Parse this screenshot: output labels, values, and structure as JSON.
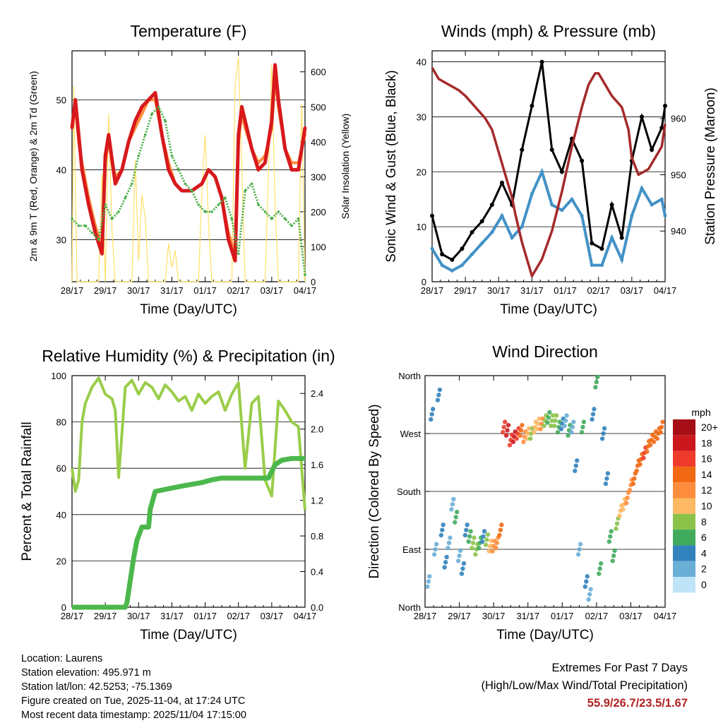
{
  "time_ticks": [
    "28/17",
    "29/17",
    "30/17",
    "31/17",
    "01/17",
    "02/17",
    "03/17",
    "04/17"
  ],
  "chart_data": [
    {
      "type": "line",
      "title": "Temperature (F)",
      "xlabel": "Time (Day/UTC)",
      "ylabel": "2m & 9m T (Red, Orange) & 2m Td (Green)",
      "ylabel_right": "Solar Insolation (Yellow)",
      "ylim": [
        24,
        57
      ],
      "yticks": [
        30,
        40,
        50
      ],
      "ylim_right": [
        0,
        660
      ],
      "yticks_right": [
        0,
        100,
        200,
        300,
        400,
        500,
        600
      ],
      "series": [
        {
          "name": "2m T",
          "color": "#d7191c",
          "axis": "left",
          "x": [
            0,
            0.1,
            0.2,
            0.3,
            0.5,
            0.7,
            0.9,
            1.0,
            1.1,
            1.3,
            1.5,
            1.7,
            1.9,
            2.1,
            2.3,
            2.5,
            2.7,
            2.9,
            3.1,
            3.3,
            3.6,
            3.9,
            4.1,
            4.3,
            4.5,
            4.7,
            4.9,
            5.0,
            5.1,
            5.2,
            5.4,
            5.6,
            5.8,
            6.0,
            6.1,
            6.2,
            6.4,
            6.6,
            6.8,
            7.0
          ],
          "values": [
            46,
            50,
            45,
            40,
            35,
            31,
            28,
            42,
            45,
            38,
            40,
            44,
            47,
            49,
            50,
            51,
            45,
            40,
            38,
            37,
            37,
            38,
            40,
            39,
            36,
            30,
            27,
            45,
            49,
            47,
            43,
            40,
            41,
            47,
            55,
            50,
            43,
            40,
            40,
            46
          ]
        },
        {
          "name": "9m T",
          "color": "#fd8d3c",
          "axis": "left",
          "x": [
            0,
            0.1,
            0.2,
            0.3,
            0.5,
            0.7,
            0.9,
            1.0,
            1.1,
            1.3,
            1.5,
            1.7,
            1.9,
            2.1,
            2.3,
            2.5,
            2.7,
            2.9,
            3.1,
            3.3,
            3.6,
            3.9,
            4.1,
            4.3,
            4.5,
            4.7,
            4.9,
            5.0,
            5.1,
            5.2,
            5.4,
            5.6,
            5.8,
            6.0,
            6.1,
            6.2,
            6.4,
            6.6,
            6.8,
            7.0
          ],
          "values": [
            46,
            49,
            44,
            41,
            36,
            32,
            29,
            41,
            44,
            39,
            40,
            44,
            46,
            48,
            50,
            50,
            45,
            41,
            38,
            37,
            37,
            38,
            40,
            39,
            36,
            31,
            28,
            44,
            48,
            46,
            43,
            41,
            42,
            46,
            53,
            49,
            43,
            41,
            41,
            45
          ]
        },
        {
          "name": "2m Td",
          "color": "#4daf4a",
          "axis": "left",
          "x": [
            0,
            0.2,
            0.4,
            0.6,
            0.8,
            1.0,
            1.2,
            1.4,
            1.6,
            1.8,
            2.0,
            2.2,
            2.4,
            2.6,
            2.8,
            3.0,
            3.2,
            3.4,
            3.6,
            3.8,
            4.0,
            4.2,
            4.4,
            4.6,
            4.8,
            5.0,
            5.2,
            5.4,
            5.6,
            5.8,
            6.0,
            6.2,
            6.4,
            6.6,
            6.8,
            7.0
          ],
          "values": [
            33,
            32,
            32,
            31,
            30,
            35,
            33,
            34,
            36,
            38,
            42,
            45,
            48,
            49,
            47,
            42,
            40,
            38,
            37,
            35,
            34,
            34,
            35,
            36,
            33,
            28,
            37,
            38,
            35,
            34,
            33,
            34,
            33,
            32,
            33,
            25
          ]
        },
        {
          "name": "Solar Insolation",
          "color": "#ffe066",
          "axis": "right",
          "x": [
            0,
            0.05,
            0.15,
            0.2,
            0.3,
            0.8,
            0.9,
            1.0,
            1.1,
            1.2,
            1.3,
            1.8,
            1.9,
            2.0,
            2.1,
            2.2,
            2.3,
            2.8,
            2.9,
            3.0,
            3.1,
            3.2,
            3.8,
            3.9,
            4.0,
            4.1,
            4.2,
            4.8,
            4.9,
            5.0,
            5.1,
            5.2,
            5.8,
            5.9,
            6.0,
            6.1,
            6.2,
            6.8,
            6.9,
            7.0
          ],
          "values": [
            0,
            560,
            0,
            0,
            0,
            0,
            310,
            0,
            480,
            150,
            0,
            0,
            350,
            60,
            250,
            180,
            0,
            0,
            110,
            40,
            90,
            0,
            0,
            260,
            420,
            170,
            0,
            0,
            560,
            640,
            330,
            0,
            0,
            300,
            620,
            220,
            0,
            0,
            510,
            0
          ]
        }
      ]
    },
    {
      "type": "scatter",
      "title": "Winds (mph) & Pressure (mb)",
      "xlabel": "Time (Day/UTC)",
      "ylabel": "Sonic Wind & Gust (Blue, Black)",
      "ylabel_right": "Station Pressure (Maroon)",
      "ylim": [
        0,
        42
      ],
      "yticks": [
        0,
        10,
        20,
        30,
        40
      ],
      "ylim_right": [
        931,
        972
      ],
      "yticks_right": [
        940,
        950,
        960
      ],
      "series": [
        {
          "name": "Sonic Wind",
          "color": "#4292c6",
          "axis": "left",
          "x": [
            0,
            0.3,
            0.6,
            0.9,
            1.2,
            1.5,
            1.8,
            2.1,
            2.4,
            2.7,
            3.0,
            3.3,
            3.6,
            3.9,
            4.2,
            4.5,
            4.8,
            5.1,
            5.4,
            5.7,
            6.0,
            6.3,
            6.6,
            6.9,
            7.0
          ],
          "values": [
            6,
            3,
            2,
            3,
            5,
            7,
            9,
            12,
            8,
            10,
            16,
            20,
            14,
            13,
            15,
            12,
            3,
            3,
            8,
            4,
            12,
            17,
            14,
            15,
            12
          ]
        },
        {
          "name": "Gust",
          "color": "#000000",
          "axis": "left",
          "x": [
            0,
            0.3,
            0.6,
            0.9,
            1.2,
            1.5,
            1.8,
            2.1,
            2.4,
            2.7,
            3.0,
            3.3,
            3.6,
            3.9,
            4.2,
            4.5,
            4.8,
            5.1,
            5.4,
            5.7,
            6.0,
            6.3,
            6.6,
            6.9,
            7.0
          ],
          "values": [
            12,
            5,
            4,
            6,
            9,
            11,
            14,
            18,
            14,
            24,
            32,
            40,
            24,
            20,
            26,
            22,
            7,
            6,
            14,
            8,
            22,
            30,
            24,
            28,
            32
          ]
        },
        {
          "name": "Station Pressure",
          "color": "#a52a2a",
          "axis": "right",
          "x": [
            0,
            0.2,
            0.5,
            0.8,
            1.0,
            1.3,
            1.6,
            1.8,
            2.0,
            2.2,
            2.4,
            2.5,
            2.7,
            2.9,
            3.0,
            3.3,
            3.6,
            3.9,
            4.2,
            4.5,
            4.7,
            4.9,
            5.0,
            5.2,
            5.4,
            5.7,
            5.9,
            6.0,
            6.2,
            6.5,
            6.7,
            6.9,
            7.0
          ],
          "values": [
            969,
            967,
            966,
            965,
            964,
            962,
            960,
            958,
            954,
            950,
            946,
            943,
            938,
            934,
            932,
            935,
            940,
            947,
            955,
            962,
            966,
            968,
            968,
            966,
            964,
            962,
            958,
            953,
            950,
            951,
            953,
            955,
            959
          ]
        }
      ]
    },
    {
      "type": "line",
      "title": "Relative Humidity (%) & Precipitation (in)",
      "xlabel": "Time (Day/UTC)",
      "ylabel": "Percent & Total Rainfall",
      "ylim": [
        0,
        100
      ],
      "yticks": [
        0,
        20,
        40,
        60,
        80,
        100
      ],
      "ylim_right": [
        0,
        2.6
      ],
      "yticks_right": [
        0.0,
        0.4,
        0.8,
        1.2,
        1.6,
        2.0,
        2.4
      ],
      "yticks_right_labels": [
        "0.0",
        "0.4",
        "0.8",
        "1.2",
        "1.6",
        "2.0",
        "2.4"
      ],
      "series": [
        {
          "name": "Relative Humidity",
          "color": "#9acd4a",
          "axis": "left",
          "x": [
            0,
            0.1,
            0.2,
            0.3,
            0.4,
            0.6,
            0.8,
            1.0,
            1.2,
            1.3,
            1.4,
            1.5,
            1.6,
            1.8,
            2.0,
            2.2,
            2.4,
            2.6,
            2.8,
            3.0,
            3.2,
            3.4,
            3.6,
            3.8,
            4.0,
            4.2,
            4.4,
            4.6,
            4.8,
            5.0,
            5.2,
            5.4,
            5.6,
            5.8,
            6.0,
            6.2,
            6.4,
            6.6,
            6.8,
            7.0
          ],
          "values": [
            60,
            50,
            55,
            80,
            88,
            95,
            99,
            92,
            90,
            85,
            56,
            75,
            95,
            98,
            92,
            97,
            95,
            90,
            96,
            93,
            89,
            91,
            85,
            92,
            88,
            91,
            93,
            85,
            92,
            97,
            60,
            88,
            91,
            55,
            48,
            89,
            85,
            80,
            78,
            42
          ]
        },
        {
          "name": "Total Rainfall",
          "color": "#4cb84c",
          "axis": "right",
          "x": [
            0,
            0.6,
            1.0,
            1.6,
            1.65,
            1.75,
            1.85,
            1.95,
            2.1,
            2.3,
            2.35,
            2.5,
            2.9,
            3.3,
            3.6,
            3.9,
            4.2,
            4.5,
            4.8,
            5.0,
            5.5,
            5.9,
            6.1,
            6.3,
            6.6,
            7.0
          ],
          "values": [
            0,
            0,
            0,
            0,
            0.05,
            0.3,
            0.55,
            0.75,
            0.9,
            0.9,
            1.1,
            1.3,
            1.33,
            1.36,
            1.38,
            1.4,
            1.43,
            1.45,
            1.45,
            1.45,
            1.45,
            1.45,
            1.6,
            1.65,
            1.67,
            1.67
          ]
        }
      ]
    },
    {
      "type": "scatter",
      "title": "Wind Direction",
      "xlabel": "Time (Day/UTC)",
      "ylabel": "Direction (Colored By Speed)",
      "ylim": [
        0,
        360
      ],
      "ytick_labels": [
        "North",
        "East",
        "South",
        "West",
        "North"
      ],
      "series": [
        {
          "name": "Direction",
          "x": [
            0.1,
            0.2,
            0.3,
            0.4,
            0.5,
            0.6,
            0.7,
            0.8,
            0.9,
            1.0,
            1.1,
            1.2,
            1.3,
            1.4,
            1.5,
            1.6,
            1.7,
            1.8,
            1.9,
            2.0,
            2.1,
            2.2,
            2.3,
            2.4,
            2.5,
            2.6,
            2.7,
            2.8,
            2.9,
            3.0,
            3.1,
            3.2,
            3.3,
            3.4,
            3.5,
            3.6,
            3.7,
            3.8,
            3.9,
            4.0,
            4.1,
            4.2,
            4.3,
            4.4,
            4.5,
            4.6,
            4.7,
            4.8,
            4.9,
            5.0,
            5.1,
            5.2,
            5.3,
            5.4,
            5.5,
            5.6,
            5.7,
            5.8,
            5.9,
            6.0,
            6.1,
            6.2,
            6.3,
            6.4,
            6.5,
            6.6,
            6.7,
            6.8,
            6.9
          ],
          "values": [
            40,
            300,
            90,
            330,
            120,
            70,
            100,
            160,
            140,
            80,
            60,
            120,
            110,
            100,
            90,
            100,
            110,
            105,
            95,
            95,
            100,
            120,
            280,
            275,
            260,
            265,
            270,
            275,
            265,
            270,
            270,
            280,
            285,
            285,
            290,
            295,
            290,
            290,
            280,
            285,
            290,
            275,
            280,
            220,
            90,
            280,
            40,
            20,
            300,
            350,
            60,
            270,
            200,
            110,
            80,
            130,
            150,
            160,
            170,
            190,
            200,
            220,
            230,
            240,
            250,
            260,
            265,
            270,
            280
          ],
          "speeds": [
            2,
            3,
            1,
            4,
            3,
            3,
            2,
            1,
            5,
            2,
            3,
            4,
            6,
            7,
            8,
            5,
            4,
            7,
            9,
            12,
            11,
            13,
            15,
            17,
            16,
            18,
            15,
            14,
            12,
            9,
            8,
            10,
            9,
            11,
            8,
            6,
            8,
            7,
            5,
            3,
            2,
            5,
            1,
            4,
            2,
            6,
            3,
            2,
            4,
            5,
            6,
            3,
            4,
            5,
            6,
            8,
            9,
            10,
            11,
            12,
            13,
            14,
            14,
            15,
            14,
            13,
            13,
            14,
            14
          ]
        }
      ],
      "colorbar": {
        "title": "mph",
        "labels": [
          "20+",
          "18",
          "16",
          "14",
          "12",
          "10",
          "8",
          "6",
          "4",
          "2",
          "0"
        ],
        "colors": [
          "#a50f15",
          "#cb181d",
          "#ef3b2c",
          "#f16913",
          "#fd8d3c",
          "#fdb863",
          "#8bc34a",
          "#41ab5d",
          "#3182bd",
          "#6baed6",
          "#bfe3f7"
        ]
      }
    }
  ],
  "footer": {
    "location": "Location: Laurens",
    "elevation": "Station elevation: 495.971 m",
    "latlon": "Station lat/lon: 42.5253; -75.1369",
    "created": "Figure created on Tue, 2025-11-04, at 17:24 UTC",
    "timestamp": "Most recent data timestamp: 2025/11/04 17:15:00"
  },
  "extremes": {
    "title": "Extremes For Past 7 Days",
    "subtitle": "(High/Low/Max Wind/Total Precipitation)",
    "values": "55.9/26.7/23.5/1.67"
  }
}
